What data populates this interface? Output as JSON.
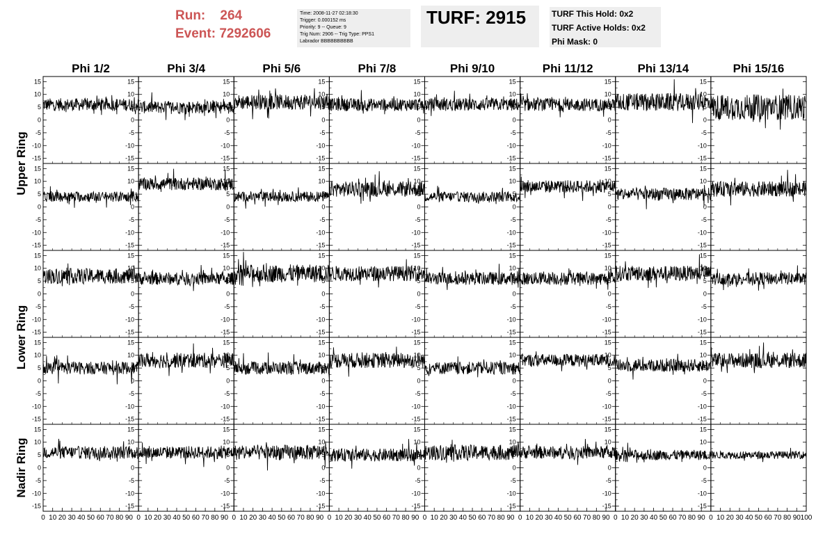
{
  "header": {
    "run_label": "Run:",
    "run_value": "264",
    "event_label": "Event:",
    "event_value": "7292606",
    "info_lines": [
      "Time: 2008-11-27 02:18:30",
      "Trigger: 0.000152 ms",
      "Priority: 9 -- Queue: 9",
      "Trig Num: 2906 -- Trig Type: PPS1",
      "Labrador BBBBBBBBBB"
    ],
    "turf_title": "TURF: 2915",
    "turf_lines": [
      "TURF This Hold: 0x2",
      "TURF Active Holds: 0x2",
      "Phi Mask: 0"
    ]
  },
  "chart_data": {
    "type": "line",
    "columns": [
      "Phi 1/2",
      "Phi 3/4",
      "Phi 5/6",
      "Phi 7/8",
      "Phi 9/10",
      "Phi 11/12",
      "Phi 13/14",
      "Phi 15/16"
    ],
    "ring_labels": [
      {
        "label": "Upper Ring",
        "rows": [
          0,
          1
        ]
      },
      {
        "label": "Lower Ring",
        "rows": [
          2,
          3
        ]
      },
      {
        "label": "Nadir Ring",
        "rows": [
          4
        ]
      }
    ],
    "xlim": [
      0,
      100
    ],
    "ylim": [
      -17,
      17
    ],
    "xticks": [
      0,
      10,
      20,
      30,
      40,
      50,
      60,
      70,
      80,
      90,
      100
    ],
    "xtick_labels": [
      "0",
      "10",
      "20",
      "30",
      "40",
      "50",
      "60",
      "70",
      "80",
      "90",
      "100"
    ],
    "yticks": [
      -15,
      -10,
      -5,
      0,
      5,
      10,
      15
    ],
    "ytick_labels": [
      "-15",
      "-10",
      "-5",
      "0",
      "5",
      "10",
      "15"
    ],
    "samples_per_trace": 256,
    "x_step": 0.4,
    "trace_baselines": [
      [
        6,
        5,
        7,
        6,
        6,
        6,
        7,
        5
      ],
      [
        4,
        9,
        4,
        7,
        4,
        8,
        5,
        7
      ],
      [
        7,
        6,
        8,
        8,
        6,
        6,
        8,
        6
      ],
      [
        5,
        8,
        5,
        8,
        5,
        8,
        6,
        8
      ],
      [
        6,
        6,
        6,
        5,
        6,
        6,
        5,
        5
      ]
    ],
    "trace_amplitudes": [
      [
        2.5,
        2.5,
        3,
        2.5,
        2.5,
        2.5,
        3.5,
        5
      ],
      [
        2,
        2.5,
        2,
        3,
        2,
        2.5,
        2.5,
        3
      ],
      [
        3,
        2.5,
        3.5,
        3,
        2.5,
        2.5,
        3,
        2.5
      ],
      [
        2.5,
        3,
        2.5,
        3,
        2.5,
        2.5,
        2.5,
        3
      ],
      [
        2.5,
        2.5,
        3,
        2.5,
        3,
        2.5,
        2,
        1.5
      ]
    ],
    "colors": {
      "trace": "#000000",
      "frame": "#000000"
    }
  }
}
